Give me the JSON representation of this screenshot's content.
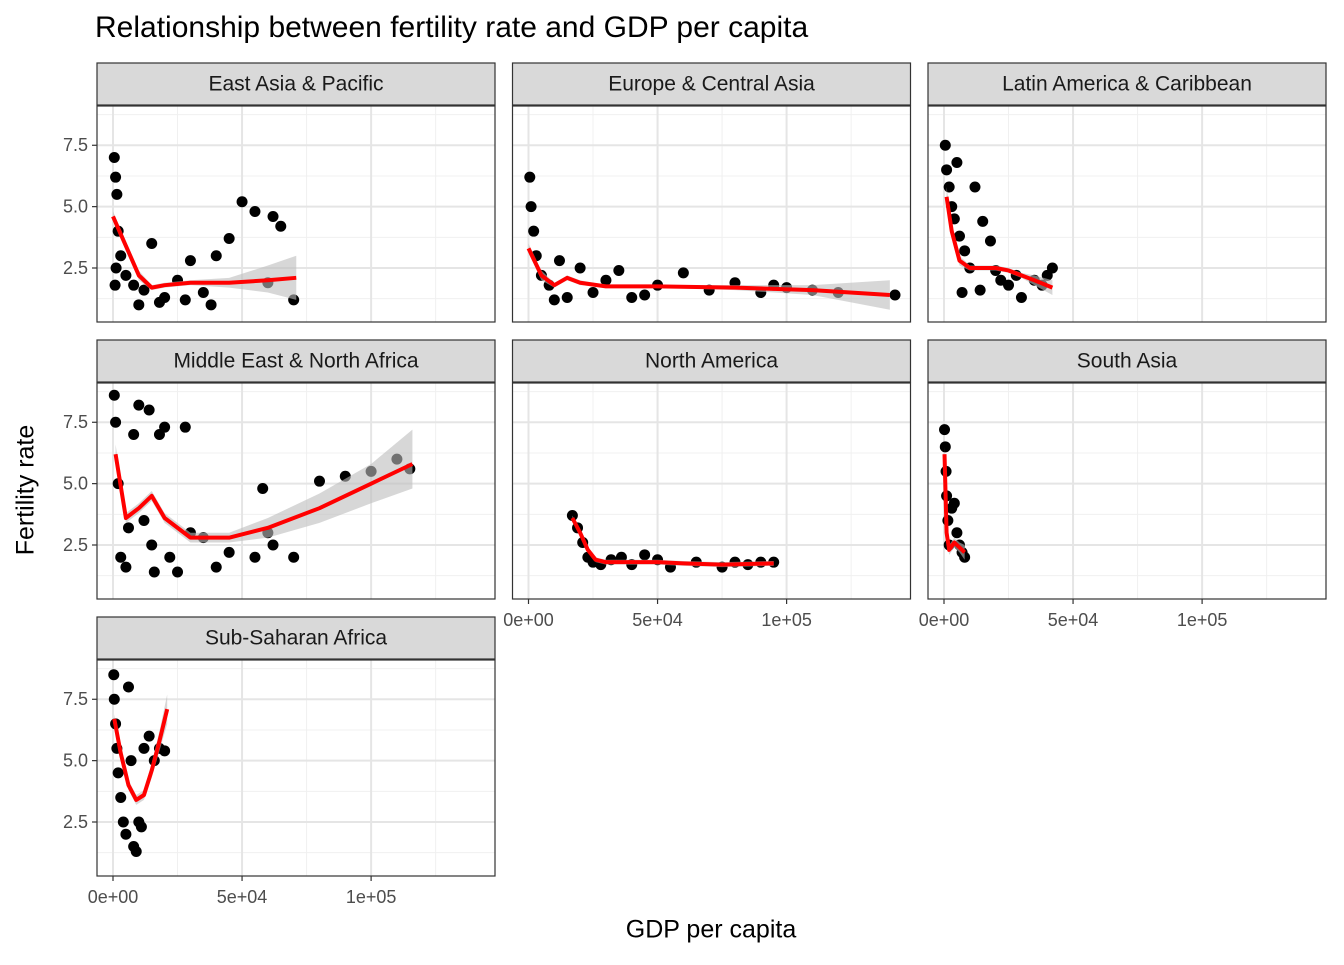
{
  "chart_data": {
    "type": "scatter",
    "title": "Relationship between fertility rate and GDP per capita",
    "x_label": "GDP per capita",
    "y_label": "Fertility rate",
    "xlim": [
      -6200,
      148000
    ],
    "ylim": [
      0.3,
      9.1
    ],
    "xticks": [
      {
        "value": 0,
        "label": "0e+00"
      },
      {
        "value": 50000,
        "label": "5e+04"
      },
      {
        "value": 100000,
        "label": "1e+05"
      }
    ],
    "yticks": [
      2.5,
      {
        "value": 5,
        "label": "5.0"
      },
      {
        "value": 7.5,
        "label": "7.5"
      }
    ],
    "x_minor_grid": [
      25000,
      75000,
      125000
    ],
    "y_minor_grid": [
      1.25,
      3.75,
      6.25,
      8.75
    ],
    "grid": true,
    "point_color": "#000000",
    "smooth_color": "#ff0000",
    "band_color": "#bdbdbd",
    "facets": [
      {
        "name": "East Asia & Pacific",
        "x": [
          500,
          1000,
          1500,
          2000,
          3000,
          1200,
          800,
          5000,
          8000,
          12000,
          15000,
          20000,
          25000,
          30000,
          35000,
          40000,
          45000,
          50000,
          55000,
          60000,
          62000,
          65000,
          70000,
          10000,
          18000,
          28000,
          38000
        ],
        "y": [
          7.0,
          6.2,
          5.5,
          4.0,
          3.0,
          2.5,
          1.8,
          2.2,
          1.8,
          1.6,
          3.5,
          1.3,
          2.0,
          2.8,
          1.5,
          3.0,
          3.7,
          5.2,
          4.8,
          1.9,
          4.6,
          4.2,
          1.2,
          1.0,
          1.1,
          1.2,
          1.0
        ],
        "smooth": {
          "x": [
            0,
            5000,
            10000,
            15000,
            20000,
            30000,
            45000,
            60000,
            71000
          ],
          "y": [
            4.6,
            3.4,
            2.2,
            1.7,
            1.8,
            1.9,
            1.9,
            2.0,
            2.1
          ],
          "lower": [
            4.4,
            3.2,
            2.0,
            1.6,
            1.7,
            1.8,
            1.7,
            1.5,
            1.2
          ],
          "upper": [
            4.8,
            3.6,
            2.4,
            1.8,
            1.9,
            2.0,
            2.1,
            2.6,
            3.0
          ]
        }
      },
      {
        "name": "Europe & Central Asia",
        "x": [
          500,
          1000,
          2000,
          3000,
          5000,
          8000,
          12000,
          20000,
          25000,
          30000,
          40000,
          50000,
          60000,
          70000,
          80000,
          90000,
          95000,
          100000,
          110000,
          120000,
          142000,
          15000,
          35000,
          45000,
          10000
        ],
        "y": [
          6.2,
          5.0,
          4.0,
          3.0,
          2.2,
          1.8,
          2.8,
          2.5,
          1.5,
          2.0,
          1.3,
          1.8,
          2.3,
          1.6,
          1.9,
          1.5,
          1.8,
          1.7,
          1.6,
          1.5,
          1.4,
          1.3,
          2.4,
          1.4,
          1.2
        ],
        "smooth": {
          "x": [
            0,
            5000,
            10000,
            15000,
            20000,
            30000,
            50000,
            80000,
            110000,
            140000
          ],
          "y": [
            3.3,
            2.2,
            1.8,
            2.1,
            1.9,
            1.75,
            1.75,
            1.7,
            1.6,
            1.4
          ],
          "lower": [
            3.1,
            2.0,
            1.7,
            2.0,
            1.8,
            1.7,
            1.7,
            1.6,
            1.4,
            0.8
          ],
          "upper": [
            3.5,
            2.4,
            1.9,
            2.2,
            2.0,
            1.8,
            1.8,
            1.8,
            1.8,
            2.0
          ]
        }
      },
      {
        "name": "Latin America & Caribbean",
        "x": [
          500,
          1000,
          2000,
          3000,
          4000,
          5000,
          6000,
          8000,
          10000,
          12000,
          15000,
          18000,
          20000,
          22000,
          25000,
          28000,
          30000,
          35000,
          38000,
          40000,
          42000,
          7000,
          14000
        ],
        "y": [
          7.5,
          6.5,
          5.8,
          5.0,
          4.5,
          6.8,
          3.8,
          3.2,
          2.5,
          5.8,
          4.4,
          3.6,
          2.4,
          2.0,
          1.8,
          2.2,
          1.3,
          2.0,
          1.8,
          2.2,
          2.5,
          1.5,
          1.6
        ],
        "smooth": {
          "x": [
            1000,
            3000,
            6000,
            10000,
            15000,
            20000,
            25000,
            30000,
            35000,
            42000
          ],
          "y": [
            5.4,
            4.0,
            2.8,
            2.5,
            2.5,
            2.5,
            2.4,
            2.2,
            2.0,
            1.7
          ],
          "lower": [
            5.0,
            3.7,
            2.6,
            2.4,
            2.4,
            2.4,
            2.3,
            2.1,
            1.8,
            1.4
          ],
          "upper": [
            5.8,
            4.3,
            3.0,
            2.6,
            2.6,
            2.6,
            2.5,
            2.3,
            2.2,
            2.0
          ]
        }
      },
      {
        "name": "Middle East & North Africa",
        "x": [
          500,
          1000,
          2000,
          3000,
          5000,
          8000,
          10000,
          12000,
          14000,
          15000,
          18000,
          20000,
          22000,
          25000,
          30000,
          35000,
          40000,
          45000,
          55000,
          58000,
          60000,
          62000,
          70000,
          80000,
          90000,
          100000,
          110000,
          115000,
          6000,
          16000,
          28000
        ],
        "y": [
          8.6,
          7.5,
          5.0,
          2.0,
          1.6,
          7.0,
          8.2,
          3.5,
          8.0,
          2.5,
          7.0,
          7.3,
          2.0,
          1.4,
          3.0,
          2.8,
          1.6,
          2.2,
          2.0,
          4.8,
          3.0,
          2.5,
          2.0,
          5.1,
          5.3,
          5.5,
          6.0,
          5.6,
          3.2,
          1.4,
          7.3
        ],
        "smooth": {
          "x": [
            1000,
            5000,
            10000,
            15000,
            20000,
            30000,
            45000,
            60000,
            80000,
            100000,
            116000
          ],
          "y": [
            6.2,
            3.6,
            4.0,
            4.5,
            3.6,
            2.8,
            2.8,
            3.2,
            4.0,
            5.0,
            5.8
          ],
          "lower": [
            5.8,
            3.4,
            3.8,
            4.3,
            3.4,
            2.6,
            2.6,
            2.8,
            3.4,
            4.2,
            4.8
          ],
          "upper": [
            6.6,
            3.8,
            4.2,
            4.7,
            3.8,
            3.0,
            3.0,
            3.6,
            4.6,
            5.8,
            7.2
          ]
        }
      },
      {
        "name": "North America",
        "x": [
          17000,
          19000,
          21000,
          23000,
          25000,
          28000,
          32000,
          36000,
          40000,
          45000,
          50000,
          55000,
          65000,
          75000,
          80000,
          85000,
          90000,
          95000
        ],
        "y": [
          3.7,
          3.2,
          2.6,
          2.0,
          1.8,
          1.7,
          1.9,
          2.0,
          1.7,
          2.1,
          1.9,
          1.6,
          1.8,
          1.6,
          1.8,
          1.7,
          1.8,
          1.8
        ],
        "smooth": {
          "x": [
            17000,
            20000,
            23000,
            26000,
            30000,
            40000,
            50000,
            60000,
            75000,
            95000
          ],
          "y": [
            3.6,
            3.0,
            2.3,
            1.9,
            1.8,
            1.8,
            1.8,
            1.75,
            1.7,
            1.75
          ],
          "lower": [
            3.5,
            2.9,
            2.2,
            1.8,
            1.7,
            1.7,
            1.7,
            1.65,
            1.6,
            1.65
          ],
          "upper": [
            3.7,
            3.1,
            2.4,
            2.0,
            1.9,
            1.9,
            1.9,
            1.85,
            1.8,
            1.85
          ]
        }
      },
      {
        "name": "South Asia",
        "x": [
          200,
          500,
          800,
          1000,
          1500,
          2000,
          3000,
          4000,
          5000,
          6000,
          7000,
          8000
        ],
        "y": [
          7.2,
          6.5,
          5.5,
          4.5,
          3.5,
          2.5,
          4.0,
          4.2,
          3.0,
          2.5,
          2.2,
          2.0
        ],
        "smooth": {
          "x": [
            200,
            1000,
            2000,
            4000,
            6000,
            8000
          ],
          "y": [
            6.2,
            3.0,
            2.3,
            2.6,
            2.4,
            2.2
          ],
          "lower": [
            5.9,
            2.8,
            2.1,
            2.4,
            2.2,
            1.9
          ],
          "upper": [
            6.5,
            3.2,
            2.5,
            2.8,
            2.6,
            2.5
          ]
        }
      },
      {
        "name": "Sub-Saharan Africa",
        "x": [
          300,
          500,
          1000,
          1500,
          2000,
          3000,
          4000,
          5000,
          6000,
          7000,
          8000,
          10000,
          12000,
          14000,
          16000,
          18000,
          20000,
          9000,
          11000
        ],
        "y": [
          8.5,
          7.5,
          6.5,
          5.5,
          4.5,
          3.5,
          2.5,
          2.0,
          8.0,
          5.0,
          1.5,
          2.5,
          5.5,
          6.0,
          5.0,
          5.5,
          5.4,
          1.3,
          2.3
        ],
        "smooth": {
          "x": [
            500,
            3000,
            6000,
            9000,
            12000,
            15000,
            18000,
            21000
          ],
          "y": [
            6.7,
            5.3,
            4.0,
            3.4,
            3.6,
            4.6,
            5.8,
            7.1
          ],
          "lower": [
            6.5,
            5.1,
            3.8,
            3.2,
            3.4,
            4.3,
            5.4,
            6.5
          ],
          "upper": [
            6.9,
            5.5,
            4.2,
            3.6,
            3.8,
            4.9,
            6.2,
            7.7
          ]
        }
      }
    ]
  }
}
